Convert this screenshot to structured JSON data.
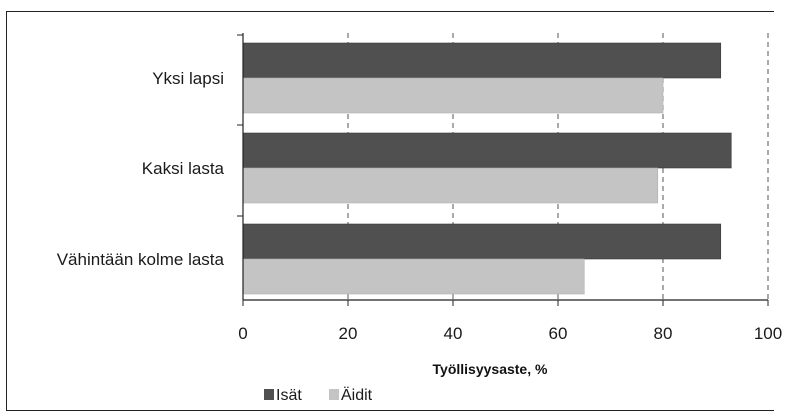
{
  "chart_data": {
    "type": "bar",
    "orientation": "horizontal",
    "categories": [
      "Yksi lapsi",
      "Kaksi lasta",
      "Vähintään kolme lasta"
    ],
    "series": [
      {
        "name": "Isät",
        "values": [
          91,
          93,
          91
        ],
        "color": "#505050"
      },
      {
        "name": "Äidit",
        "values": [
          80,
          79,
          65
        ],
        "color": "#c4c4c4"
      }
    ],
    "xlabel": "Työllisyysaste, %",
    "xlim": [
      0,
      100
    ],
    "xticks": [
      0,
      20,
      40,
      60,
      80,
      100
    ],
    "grid": "vertical dashed",
    "legend_position": "bottom"
  }
}
